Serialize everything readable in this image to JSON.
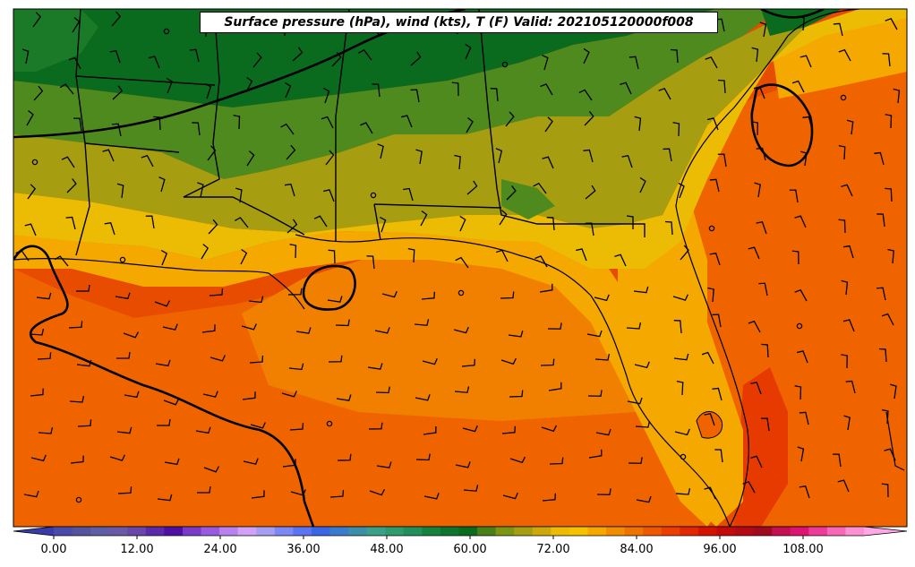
{
  "title": "Surface pressure (hPa), wind (kts), T (F) Valid: 202105120000f008",
  "colorbar": {
    "labels": [
      "0.00",
      "12.00",
      "24.00",
      "36.00",
      "48.00",
      "60.00",
      "72.00",
      "84.00",
      "96.00",
      "108.00"
    ],
    "colors": [
      "#4a4aa8",
      "#54549e",
      "#5e5ea2",
      "#6a5aa6",
      "#6846aa",
      "#5a2aa8",
      "#4c10a2",
      "#7a3ac6",
      "#9a5ae0",
      "#b882ee",
      "#d0a2f6",
      "#a69ef2",
      "#7e88f4",
      "#5a74f2",
      "#3a66e6",
      "#3a7ccc",
      "#3a8ea8",
      "#3aa088",
      "#2e9a6e",
      "#229058",
      "#168242",
      "#0e7530",
      "#0a6a1e",
      "#4a7e18",
      "#7e9414",
      "#a69e10",
      "#cca80a",
      "#ecbc04",
      "#f6c200",
      "#f4a800",
      "#f28c00",
      "#f07200",
      "#ee5800",
      "#ec3e00",
      "#e22800",
      "#d41400",
      "#c40a0a",
      "#b20a14",
      "#a00a1e",
      "#c41050",
      "#dc1472",
      "#ee3a98",
      "#f868b8",
      "#fc90d4"
    ],
    "under_color": "#3a3aa8",
    "over_color": "#ffa8e6"
  },
  "legend_hint": "temperature shading (F)",
  "map": {
    "colors": {
      "dark_green": "#0a6a1e",
      "green": "#1a7a28",
      "mid_green": "#4e8a1e",
      "olive": "#a69e10",
      "gold": "#ecbc04",
      "amber": "#f4a800",
      "orange": "#f28000",
      "deep_orange": "#f06400",
      "red_orange": "#e84c00",
      "red": "#e63a00"
    }
  }
}
